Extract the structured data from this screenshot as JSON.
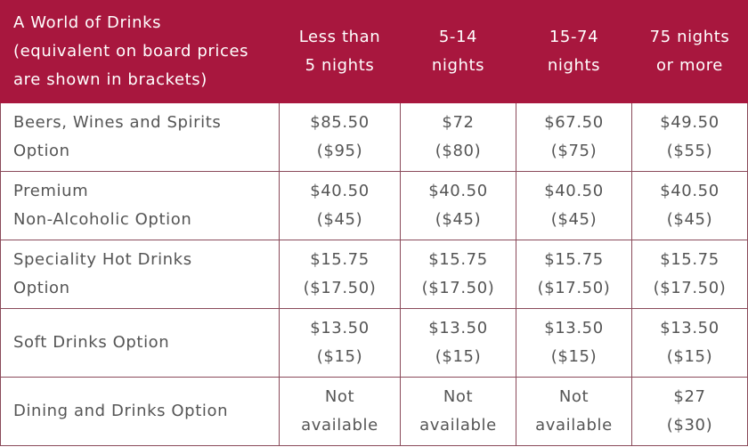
{
  "table": {
    "header": [
      [
        "A World of Drinks",
        "(equivalent on board prices",
        "are shown in brackets)"
      ],
      [
        "Less than",
        "5 nights"
      ],
      [
        "5-14",
        "nights"
      ],
      [
        "15-74",
        "nights"
      ],
      [
        "75 nights",
        "or more"
      ]
    ],
    "rows": [
      [
        [
          "Beers, Wines and Spirits",
          "Option"
        ],
        [
          "$85.50",
          "($95)"
        ],
        [
          "$72",
          "($80)"
        ],
        [
          "$67.50",
          "($75)"
        ],
        [
          "$49.50",
          "($55)"
        ]
      ],
      [
        [
          "Premium",
          "Non-Alcoholic Option"
        ],
        [
          "$40.50",
          "($45)"
        ],
        [
          "$40.50",
          "($45)"
        ],
        [
          "$40.50",
          "($45)"
        ],
        [
          "$40.50",
          "($45)"
        ]
      ],
      [
        [
          "Speciality Hot Drinks",
          "Option"
        ],
        [
          "$15.75",
          "($17.50)"
        ],
        [
          "$15.75",
          "($17.50)"
        ],
        [
          "$15.75",
          "($17.50)"
        ],
        [
          "$15.75",
          "($17.50)"
        ]
      ],
      [
        [
          "Soft Drinks Option"
        ],
        [
          "$13.50",
          "($15)"
        ],
        [
          "$13.50",
          "($15)"
        ],
        [
          "$13.50",
          "($15)"
        ],
        [
          "$13.50",
          "($15)"
        ]
      ],
      [
        [
          "Dining and Drinks Option"
        ],
        [
          "Not",
          "available"
        ],
        [
          "Not",
          "available"
        ],
        [
          "Not",
          "available"
        ],
        [
          "$27",
          "($30)"
        ]
      ]
    ]
  }
}
